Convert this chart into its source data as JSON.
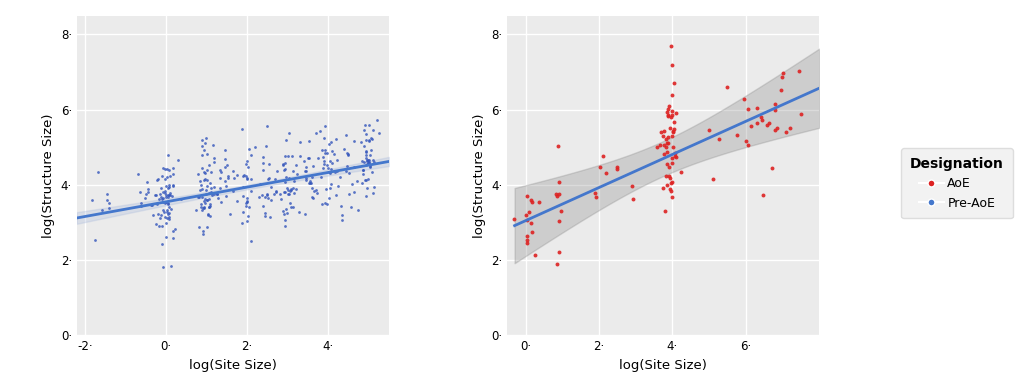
{
  "left_plot": {
    "xlabel": "log(Site Size)",
    "ylabel": "log(Structure Size)",
    "xlim": [
      -2.2,
      5.5
    ],
    "ylim": [
      0,
      8.5
    ],
    "xticks": [
      -2,
      0,
      2,
      4
    ],
    "yticks": [
      0,
      2,
      4,
      6,
      8
    ],
    "dot_color": "#3355bb",
    "line_color": "#4477cc",
    "ci_color": "#aabbdd",
    "bg_color": "#ebebeb",
    "grid_color": "white",
    "line_intercept": 3.55,
    "line_slope": 0.195,
    "seed": 42,
    "n_points": 400,
    "cluster_centers": [
      -1.5,
      -0.5,
      0.0,
      1.0,
      1.5,
      2.0,
      2.5,
      3.0,
      3.5,
      4.0,
      4.5,
      5.0
    ],
    "cluster_probs": [
      0.02,
      0.02,
      0.18,
      0.15,
      0.06,
      0.09,
      0.06,
      0.09,
      0.06,
      0.09,
      0.06,
      0.12
    ],
    "cluster_spread": 0.12,
    "y_noise": 0.6
  },
  "right_plot": {
    "xlabel": "log(Site Size)",
    "ylabel": "log(Structure Size)",
    "xlim": [
      -0.5,
      8.0
    ],
    "ylim": [
      0,
      8.5
    ],
    "xticks": [
      0,
      2,
      4,
      6
    ],
    "yticks": [
      0,
      2,
      4,
      6,
      8
    ],
    "dot_color": "#dd2222",
    "line_color": "#4477cc",
    "ci_color": "#aaaaaa",
    "bg_color": "#ebebeb",
    "grid_color": "white",
    "line_intercept": 3.05,
    "line_slope": 0.44,
    "seed": 99,
    "cluster_centers": [
      0.05,
      0.9,
      2.3,
      3.9,
      6.5
    ],
    "cluster_sizes": [
      12,
      8,
      7,
      45,
      20
    ],
    "cluster_spreads": [
      0.15,
      0.08,
      0.35,
      0.12,
      0.4
    ],
    "y_noise": 0.72
  },
  "legend": {
    "aoe_color": "#dd2222",
    "pre_aoe_color": "#4477cc",
    "aoe_label": "AoE",
    "pre_aoe_label": "Pre-AoE",
    "title": "Designation"
  }
}
